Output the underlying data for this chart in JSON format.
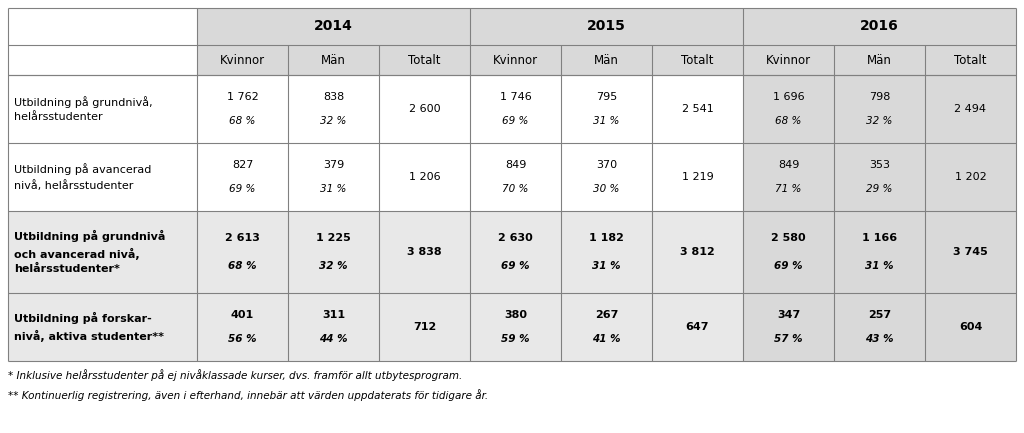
{
  "footnotes": [
    "* Inklusive helårsstudenter på ej nivåklassade kurser, dvs. framför allt utbytesprogram.",
    "** Kontinuerlig registrering, även i efterhand, innebär att värden uppdaterats för tidigare år."
  ],
  "years": [
    "2014",
    "2015",
    "2016"
  ],
  "sub_headers": [
    "Kvinnor",
    "Män",
    "Totalt"
  ],
  "rows": [
    {
      "label": "Utbildning på grundnivå,\nhelårsstudenter",
      "bold": false,
      "data": [
        [
          "1 762",
          "838",
          "2 600"
        ],
        [
          "1 746",
          "795",
          "2 541"
        ],
        [
          "1 696",
          "798",
          "2 494"
        ]
      ],
      "pct": [
        [
          "68 %",
          "32 %",
          ""
        ],
        [
          "69 %",
          "31 %",
          ""
        ],
        [
          "68 %",
          "32 %",
          ""
        ]
      ]
    },
    {
      "label": "Utbildning på avancerad\nnivå, helårsstudenter",
      "bold": false,
      "data": [
        [
          "827",
          "379",
          "1 206"
        ],
        [
          "849",
          "370",
          "1 219"
        ],
        [
          "849",
          "353",
          "1 202"
        ]
      ],
      "pct": [
        [
          "69 %",
          "31 %",
          ""
        ],
        [
          "70 %",
          "30 %",
          ""
        ],
        [
          "71 %",
          "29 %",
          ""
        ]
      ]
    },
    {
      "label": "Utbildning på grundnivå\noch avancerad nivå,\nhelårsstudenter*",
      "bold": true,
      "data": [
        [
          "2 613",
          "1 225",
          "3 838"
        ],
        [
          "2 630",
          "1 182",
          "3 812"
        ],
        [
          "2 580",
          "1 166",
          "3 745"
        ]
      ],
      "pct": [
        [
          "68 %",
          "32 %",
          ""
        ],
        [
          "69 %",
          "31 %",
          ""
        ],
        [
          "69 %",
          "31 %",
          ""
        ]
      ]
    },
    {
      "label": "Utbildning på forskar-\nnivå, aktiva studenter**",
      "bold": true,
      "data": [
        [
          "401",
          "311",
          "712"
        ],
        [
          "380",
          "267",
          "647"
        ],
        [
          "347",
          "257",
          "604"
        ]
      ],
      "pct": [
        [
          "56 %",
          "44 %",
          ""
        ],
        [
          "59 %",
          "41 %",
          ""
        ],
        [
          "57 %",
          "43 %",
          ""
        ]
      ]
    }
  ],
  "col_header_bg": "#d9d9d9",
  "year_header_bg": "#d9d9d9",
  "last_year_col_bg": "#d9d9d9",
  "row_bg_white": "#ffffff",
  "row_bg_gray": "#d9d9d9",
  "border_color": "#808080",
  "text_color": "#000000",
  "font_size": 8.0,
  "header_font_size": 10.0,
  "subheader_font_size": 8.5,
  "footnote_font_size": 7.5
}
